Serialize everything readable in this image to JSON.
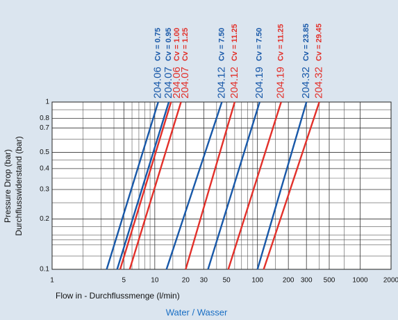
{
  "chart_data": {
    "type": "line",
    "x_label": "Flow in - Durchflussmenge (l/min)",
    "subtitle": "Water / Wasser",
    "y_label": [
      "Pressure Drop (bar)",
      "Durchflusswiderstand (bar)"
    ],
    "x_scale": "log",
    "y_scale": "log",
    "grid": true,
    "xlim": [
      1,
      2000
    ],
    "ylim": [
      0.1,
      1
    ],
    "xticks": [
      1,
      5,
      10,
      20,
      30,
      50,
      100,
      200,
      300,
      500,
      1000,
      2000
    ],
    "yticks": [
      0.1,
      0.2,
      0.3,
      0.4,
      0.5,
      0.7,
      0.8,
      1
    ],
    "xminorticks": [
      2,
      3,
      4,
      6,
      7,
      8,
      9,
      15,
      40,
      60,
      70,
      80,
      90,
      150,
      400,
      700
    ],
    "yminorticks": [
      0.12,
      0.14,
      0.15,
      0.16,
      0.18,
      0.25,
      0.35,
      0.45,
      0.6,
      0.9
    ],
    "series": [
      {
        "name": "204.06",
        "cv": "Cv = 0.75",
        "color": "#1858a8",
        "x": [
          3.4,
          10.8
        ],
        "values": [
          0.1,
          1
        ]
      },
      {
        "name": "204.07",
        "cv": "Cv = 0.95",
        "color": "#1858a8",
        "x": [
          4.3,
          13.7
        ],
        "values": [
          0.1,
          1
        ]
      },
      {
        "name": "204.06",
        "cv": "Cv = 1.00",
        "color": "#e2302a",
        "x": [
          4.6,
          14.4
        ],
        "values": [
          0.1,
          1
        ]
      },
      {
        "name": "204.07",
        "cv": "Cv = 1.25",
        "color": "#e2302a",
        "x": [
          5.7,
          18
        ],
        "values": [
          0.1,
          1
        ]
      },
      {
        "name": "204.12",
        "cv": "Cv = 7.50",
        "color": "#1858a8",
        "x": [
          13,
          45
        ],
        "values": [
          0.1,
          1
        ]
      },
      {
        "name": "204.12",
        "cv": "Cv = 11.25",
        "color": "#e2302a",
        "x": [
          20,
          60
        ],
        "values": [
          0.1,
          1
        ]
      },
      {
        "name": "204.19",
        "cv": "Cv = 7.50",
        "color": "#1858a8",
        "x": [
          33,
          105
        ],
        "values": [
          0.1,
          1
        ]
      },
      {
        "name": "204.19",
        "cv": "Cv = 11.25",
        "color": "#e2302a",
        "x": [
          52,
          170
        ],
        "values": [
          0.1,
          1
        ]
      },
      {
        "name": "204.32",
        "cv": "Cv = 23.85",
        "color": "#1858a8",
        "x": [
          100,
          300
        ],
        "values": [
          0.1,
          1
        ]
      },
      {
        "name": "204.32",
        "cv": "Cv = 29.45",
        "color": "#e2302a",
        "x": [
          115,
          400
        ],
        "values": [
          0.1,
          1
        ]
      }
    ]
  }
}
